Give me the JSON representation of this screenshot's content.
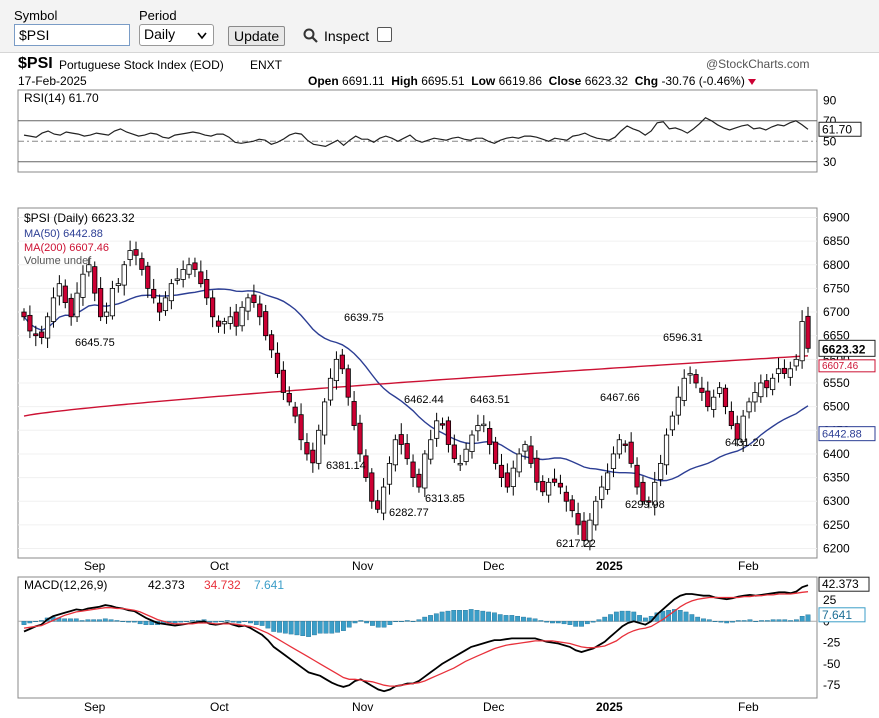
{
  "toolbar": {
    "symbol_label": "Symbol",
    "symbol_value": "$PSI",
    "period_label": "Period",
    "period_value": "Daily",
    "update_label": "Update",
    "inspect_label": "Inspect"
  },
  "header": {
    "symbol": "$PSI",
    "name": "Portuguese Stock Index (EOD)",
    "exchange": "ENXT",
    "date": "17-Feb-2025",
    "watermark": "@StockCharts.com",
    "open_label": "Open",
    "open": "6691.11",
    "high_label": "High",
    "high": "6695.51",
    "low_label": "Low",
    "low": "6619.86",
    "close_label": "Close",
    "close": "6623.32",
    "chg_label": "Chg",
    "chg": "-30.76 (-0.46%)"
  },
  "colors": {
    "up": "#ffffff",
    "down": "#cc0033",
    "ma50": "#2c3e94",
    "ma200": "#cc1133",
    "macd": "#000000",
    "signal": "#e8313b",
    "hist": "#3b9ec8"
  },
  "chart_data": [
    {
      "type": "line",
      "title": "RSI(14) 61.70",
      "series": [
        {
          "name": "RSI(14)",
          "values": [
            56,
            55,
            54,
            58,
            60,
            57,
            56,
            59,
            58,
            57,
            55,
            56,
            58,
            57,
            56,
            60,
            62,
            59,
            57,
            55,
            56,
            58,
            57,
            54,
            53,
            56,
            57,
            58,
            59,
            58,
            56,
            55,
            57,
            57,
            54,
            49,
            48,
            49,
            50,
            52,
            51,
            47,
            49,
            52,
            56,
            58,
            57,
            51,
            47,
            46,
            45,
            48,
            51,
            46,
            51,
            55,
            52,
            52,
            49,
            53,
            55,
            53,
            50,
            53,
            56,
            51,
            49,
            51,
            53,
            52,
            51,
            53,
            54,
            52,
            51,
            53,
            53,
            50,
            48,
            51,
            53,
            54,
            53,
            55,
            55,
            54,
            52,
            50,
            53,
            52,
            51,
            55,
            56,
            58,
            55,
            53,
            52,
            51,
            54,
            60,
            65,
            62,
            60,
            56,
            60,
            68,
            69,
            62,
            63,
            61,
            58,
            62,
            67,
            73,
            70,
            66,
            63,
            61,
            63,
            65,
            66,
            62,
            63,
            61,
            64,
            66,
            65,
            68,
            70,
            66,
            61.7
          ]
        }
      ],
      "yticks": [
        90,
        70,
        50,
        30
      ],
      "ylim": [
        20,
        100
      ],
      "last_value": 61.7
    },
    {
      "type": "candlestick",
      "title": "$PSI (Daily) 6623.32",
      "legend": [
        "$PSI (Daily) 6623.32",
        "MA(50) 6442.88",
        "MA(200) 6607.46",
        "Volume undef"
      ],
      "x_labels": [
        "Sep",
        "Oct",
        "Nov",
        "Dec",
        "2025",
        "Feb"
      ],
      "yticks": [
        6900,
        6850,
        6800,
        6750,
        6700,
        6650,
        6600,
        6550,
        6500,
        6450,
        6400,
        6350,
        6300,
        6250,
        6200
      ],
      "ylim": [
        6180,
        6920
      ],
      "close": [
        6690,
        6660,
        6650,
        6646,
        6690,
        6730,
        6760,
        6720,
        6690,
        6740,
        6780,
        6800,
        6740,
        6690,
        6700,
        6750,
        6760,
        6800,
        6830,
        6820,
        6790,
        6750,
        6730,
        6700,
        6730,
        6760,
        6770,
        6790,
        6800,
        6790,
        6760,
        6730,
        6690,
        6670,
        6680,
        6690,
        6670,
        6710,
        6730,
        6720,
        6690,
        6650,
        6620,
        6570,
        6530,
        6510,
        6480,
        6430,
        6400,
        6381.14,
        6450,
        6510,
        6560,
        6600,
        6580,
        6520,
        6460,
        6400,
        6350,
        6300,
        6283,
        6330,
        6380,
        6430,
        6420,
        6390,
        6350,
        6330,
        6400,
        6430,
        6470,
        6462,
        6420,
        6390,
        6380,
        6410,
        6440,
        6460,
        6463,
        6420,
        6380,
        6350,
        6330,
        6370,
        6400,
        6420,
        6380,
        6340,
        6320,
        6340,
        6340,
        6330,
        6300,
        6280,
        6250,
        6217.22,
        6260,
        6300,
        6330,
        6360,
        6400,
        6430,
        6420,
        6380,
        6330,
        6300,
        6299.98,
        6340,
        6380,
        6440,
        6480,
        6520,
        6560,
        6570,
        6550,
        6530,
        6500,
        6520,
        6540,
        6500,
        6460,
        6431.2,
        6480,
        6510,
        6530,
        6550,
        6540,
        6560,
        6580,
        6570,
        6580,
        6600,
        6680,
        6623.32
      ],
      "series": [
        {
          "name": "MA(50)",
          "last": 6442.88
        },
        {
          "name": "MA(200)",
          "last": 6607.46
        }
      ],
      "annotations": [
        "6645.75",
        "6639.75",
        "6381.14",
        "6462.44",
        "6463.51",
        "6282.77",
        "6313.85",
        "6217.22",
        "6596.31",
        "6467.66",
        "6299.98",
        "6431.20"
      ],
      "axis_tags": [
        {
          "label": "6623.32",
          "value": 6623.32
        },
        {
          "label": "6607.46",
          "value": 6607.46
        },
        {
          "label": "6442.88",
          "value": 6442.88
        }
      ]
    },
    {
      "type": "line",
      "title": "MACD(12,26,9)",
      "legend": {
        "macd": "42.373",
        "signal": "34.732",
        "hist": "7.641"
      },
      "series": [
        {
          "name": "MACD",
          "values": [
            -12,
            -9,
            -6,
            -4,
            2,
            6,
            8,
            10,
            12,
            14,
            13,
            15,
            16,
            17,
            19,
            18,
            16,
            15,
            13,
            12,
            8,
            4,
            1,
            -2,
            -3,
            -4,
            -5,
            -4,
            -3,
            -2,
            -1,
            0,
            -3,
            -4,
            -3,
            -2,
            -4,
            -6,
            -5,
            -8,
            -12,
            -16,
            -22,
            -30,
            -35,
            -40,
            -45,
            -50,
            -55,
            -60,
            -62,
            -64,
            -68,
            -72,
            -75,
            -77,
            -75,
            -70,
            -68,
            -72,
            -76,
            -80,
            -82,
            -80,
            -76,
            -75,
            -73,
            -73,
            -70,
            -65,
            -60,
            -55,
            -50,
            -46,
            -42,
            -38,
            -34,
            -30,
            -28,
            -26,
            -24,
            -22,
            -22,
            -21,
            -20,
            -20,
            -20,
            -20,
            -20,
            -22,
            -24,
            -25,
            -26,
            -28,
            -30,
            -34,
            -36,
            -34,
            -32,
            -28,
            -24,
            -18,
            -12,
            -6,
            -2,
            0,
            -2,
            -4,
            0,
            8,
            14,
            20,
            26,
            30,
            32,
            32,
            31,
            30,
            30,
            28,
            27,
            26,
            27,
            29,
            30,
            31,
            30,
            31,
            32,
            33,
            34,
            34,
            33,
            35,
            40,
            42.373
          ]
        },
        {
          "name": "Signal",
          "values": [
            -8,
            -7,
            -6,
            -5,
            -2,
            1,
            4,
            7,
            9,
            11,
            12,
            13,
            14,
            15,
            16,
            16,
            15,
            15,
            14,
            13,
            11,
            8,
            5,
            2,
            0,
            -2,
            -3,
            -3,
            -3,
            -3,
            -2,
            -2,
            -2,
            -3,
            -3,
            -3,
            -3,
            -4,
            -5,
            -6,
            -8,
            -11,
            -14,
            -18,
            -22,
            -26,
            -30,
            -34,
            -38,
            -42,
            -46,
            -50,
            -54,
            -58,
            -62,
            -66,
            -68,
            -68,
            -69,
            -70,
            -71,
            -73,
            -75,
            -76,
            -76,
            -75,
            -74,
            -73,
            -72,
            -70,
            -67,
            -64,
            -61,
            -58,
            -55,
            -51,
            -47,
            -44,
            -41,
            -38,
            -35,
            -32,
            -30,
            -28,
            -27,
            -26,
            -25,
            -24,
            -23,
            -23,
            -23,
            -23,
            -24,
            -25,
            -26,
            -28,
            -30,
            -31,
            -31,
            -30,
            -29,
            -26,
            -23,
            -18,
            -14,
            -11,
            -9,
            -8,
            -6,
            -2,
            2,
            7,
            12,
            17,
            21,
            24,
            26,
            27,
            28,
            28,
            28,
            28,
            28,
            28,
            29,
            29,
            30,
            30,
            31,
            31,
            32,
            32,
            32,
            33,
            34,
            34.732
          ]
        }
      ],
      "yticks": [
        25,
        0,
        -25,
        -50,
        -75
      ],
      "ylim": [
        -90,
        52
      ]
    }
  ]
}
